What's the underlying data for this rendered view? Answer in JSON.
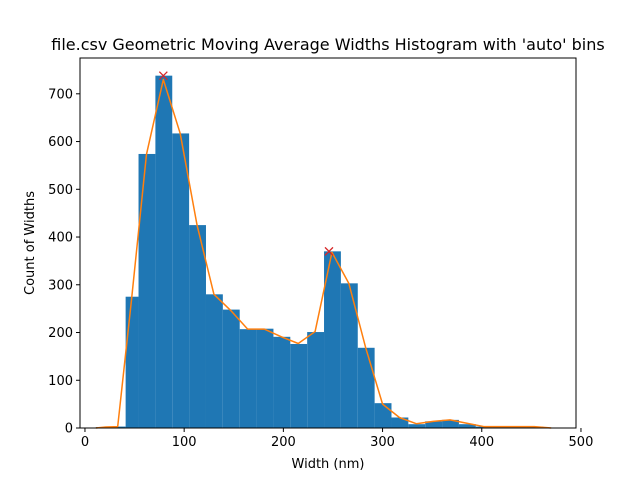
{
  "chart_data": {
    "type": "bar",
    "title": "file.csv Geometric Moving Average Widths Histogram with 'auto' bins",
    "xlabel": "Width (nm)",
    "ylabel": "Count of Widths",
    "xlim": [
      -5,
      495
    ],
    "ylim": [
      0,
      775
    ],
    "xticks": [
      0,
      100,
      200,
      300,
      400,
      500
    ],
    "yticks": [
      0,
      100,
      200,
      300,
      400,
      500,
      600,
      700
    ],
    "bar_color": "#1f77b4",
    "line_color": "#ff7f0e",
    "marker_color": "#d62728",
    "bins": [
      {
        "x0": 11,
        "x1": 21,
        "count": 2
      },
      {
        "x0": 21,
        "x1": 31,
        "count": 3
      },
      {
        "x0": 31,
        "x1": 41,
        "count": 3
      },
      {
        "x0": 41,
        "x1": 54,
        "count": 275
      },
      {
        "x0": 54,
        "x1": 71,
        "count": 574
      },
      {
        "x0": 71,
        "x1": 88,
        "count": 738
      },
      {
        "x0": 88,
        "x1": 105,
        "count": 617
      },
      {
        "x0": 105,
        "x1": 122,
        "count": 425
      },
      {
        "x0": 122,
        "x1": 139,
        "count": 280
      },
      {
        "x0": 139,
        "x1": 156,
        "count": 248
      },
      {
        "x0": 156,
        "x1": 173,
        "count": 207
      },
      {
        "x0": 173,
        "x1": 190,
        "count": 208
      },
      {
        "x0": 190,
        "x1": 207,
        "count": 191
      },
      {
        "x0": 207,
        "x1": 224,
        "count": 176
      },
      {
        "x0": 224,
        "x1": 241,
        "count": 201
      },
      {
        "x0": 241,
        "x1": 258,
        "count": 370
      },
      {
        "x0": 258,
        "x1": 275,
        "count": 303
      },
      {
        "x0": 275,
        "x1": 292,
        "count": 168
      },
      {
        "x0": 292,
        "x1": 309,
        "count": 52
      },
      {
        "x0": 309,
        "x1": 326,
        "count": 22
      },
      {
        "x0": 326,
        "x1": 343,
        "count": 8
      },
      {
        "x0": 343,
        "x1": 360,
        "count": 14
      },
      {
        "x0": 360,
        "x1": 377,
        "count": 17
      },
      {
        "x0": 377,
        "x1": 394,
        "count": 8
      },
      {
        "x0": 394,
        "x1": 411,
        "count": 3
      },
      {
        "x0": 411,
        "x1": 428,
        "count": 3
      },
      {
        "x0": 428,
        "x1": 445,
        "count": 3
      },
      {
        "x0": 445,
        "x1": 462,
        "count": 3
      },
      {
        "x0": 462,
        "x1": 472,
        "count": 1
      }
    ],
    "smoothed_line": {
      "x": [
        11,
        21,
        33,
        47,
        62,
        79,
        96,
        113,
        130,
        147,
        164,
        181,
        198,
        215,
        232,
        249,
        266,
        283,
        300,
        317,
        334,
        351,
        368,
        385,
        402,
        419,
        436,
        453,
        470
      ],
      "y": [
        0,
        2,
        3,
        270,
        573,
        730,
        617,
        425,
        280,
        246,
        207,
        207,
        191,
        177,
        202,
        368,
        303,
        168,
        50,
        22,
        9,
        14,
        17,
        10,
        3,
        3,
        3,
        3,
        0
      ]
    },
    "peaks": [
      {
        "x": 79,
        "y": 738
      },
      {
        "x": 246,
        "y": 370
      }
    ]
  }
}
